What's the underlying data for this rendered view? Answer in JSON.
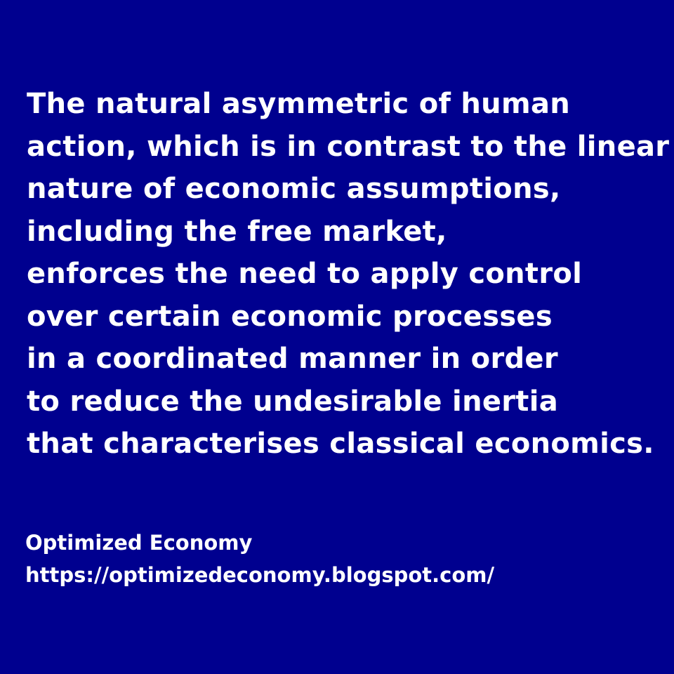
{
  "background_color": "#00008f",
  "text_color": "#ffffff",
  "quote": {
    "lines": [
      "The natural asymmetric of human",
      "action, which is in contrast to the linear",
      "nature of economic assumptions,",
      "including the free market,",
      "enforces the need to apply control",
      "over certain economic processes",
      "in a coordinated manner in order",
      "to reduce the undesirable inertia",
      "that characterises classical economics."
    ]
  },
  "signature": {
    "name": "Optimized Economy",
    "url": "https://optimizedeconomy.blogspot.com/"
  }
}
